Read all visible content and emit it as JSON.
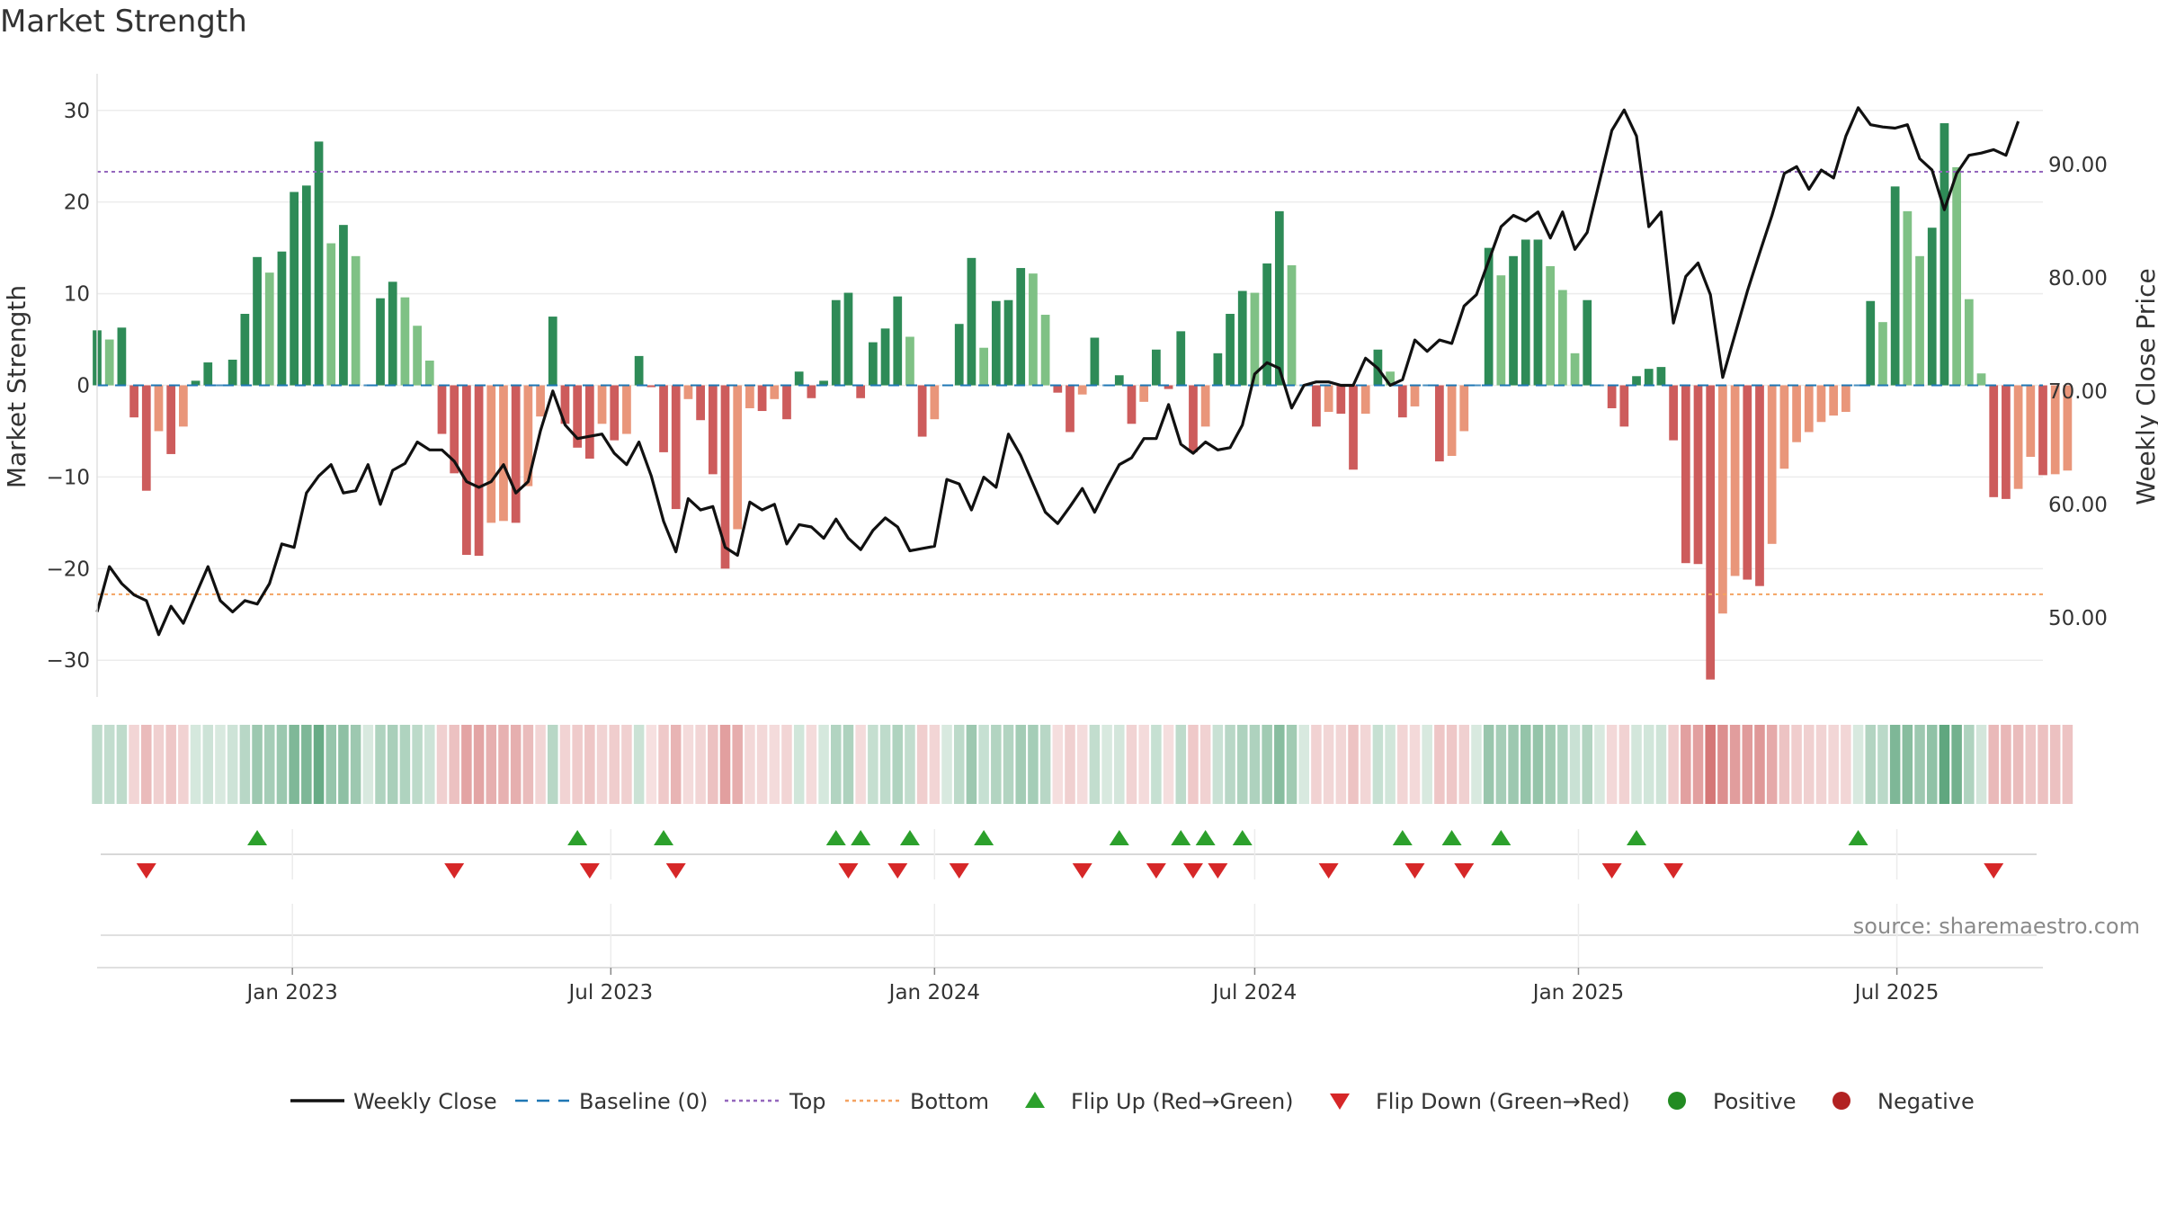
{
  "title": "Market Strength",
  "source": "source: sharemaestro.com",
  "chart_data": {
    "type": "bar",
    "title": "Market Strength",
    "ylabel_left": "Market Strength",
    "ylabel_right": "Weekly Close Price",
    "y_left_ticks": [
      30,
      20,
      10,
      0,
      -10,
      -20,
      -30
    ],
    "y_left_tick_labels": [
      "30",
      "20",
      "10",
      "0",
      "−10",
      "−20",
      "−30"
    ],
    "y_right_ticks": [
      90,
      80,
      70,
      60,
      50
    ],
    "y_right_tick_labels": [
      "90.00",
      "80.00",
      "70.00",
      "60.00",
      "50.00"
    ],
    "ylim_left": [
      -34,
      34
    ],
    "ylim_right": [
      43,
      98
    ],
    "x_start": "2022-09-12",
    "x_end": "2025-09-22",
    "x_ticks": [
      {
        "date": "2023-01-01",
        "label": "Jan 2023"
      },
      {
        "date": "2023-07-01",
        "label": "Jul 2023"
      },
      {
        "date": "2024-01-01",
        "label": "Jan 2024"
      },
      {
        "date": "2024-07-01",
        "label": "Jul 2024"
      },
      {
        "date": "2025-01-01",
        "label": "Jan 2025"
      },
      {
        "date": "2025-07-01",
        "label": "Jul 2025"
      }
    ],
    "top_line": 23.3,
    "bottom_line": -22.8,
    "colors": {
      "positive_strong": "#2e8b57",
      "positive_weak": "#7fc185",
      "negative_strong": "#cd5c5c",
      "negative_weak": "#e9967a",
      "weekly_close": "#111111",
      "baseline": "#1f77b4",
      "top": "#9467bd",
      "bottom": "#f4a261",
      "flip_up": "#2ca02c",
      "flip_down": "#d62728",
      "positive_dot": "#228b22",
      "negative_dot": "#b22222"
    },
    "strength": [
      6,
      5,
      6.3,
      -3.5,
      -11.5,
      -5,
      -7.5,
      -4.5,
      0.5,
      2.5,
      0,
      2.8,
      7.8,
      14,
      12.3,
      14.6,
      21.1,
      21.8,
      26.6,
      15.5,
      17.5,
      14.1,
      0,
      9.5,
      11.3,
      9.6,
      6.5,
      2.7,
      -5.3,
      -9.6,
      -18.5,
      -18.6,
      -15,
      -14.8,
      -15,
      -11,
      -3.4,
      7.5,
      -4.2,
      -6.8,
      -8,
      -4.2,
      -6,
      -5.3,
      3.2,
      -0.2,
      -7.3,
      -13.5,
      -1.5,
      -3.8,
      -9.7,
      -20,
      -15.7,
      -2.5,
      -2.8,
      -1.5,
      -3.7,
      1.5,
      -1.4,
      0.5,
      9.3,
      10.1,
      -1.4,
      4.7,
      6.2,
      9.7,
      5.3,
      -5.6,
      -3.7,
      0,
      6.7,
      13.9,
      4.1,
      9.2,
      9.3,
      12.8,
      12.2,
      7.7,
      -0.8,
      -5.1,
      -1,
      5.2,
      0,
      1.1,
      -4.2,
      -1.8,
      3.9,
      -0.4,
      5.9,
      -7.3,
      -4.5,
      3.5,
      7.8,
      10.3,
      10.1,
      13.3,
      19,
      13.1,
      0,
      -4.5,
      -2.9,
      -3.1,
      -9.2,
      -3.1,
      3.9,
      1.5,
      -3.5,
      -2.3,
      0,
      -8.3,
      -7.7,
      -5,
      0,
      15,
      12,
      14.1,
      15.9,
      15.9,
      13,
      10.4,
      3.5,
      9.3,
      0,
      -2.5,
      -4.5,
      1,
      1.8,
      2,
      -6,
      -19.4,
      -19.5,
      -32.1,
      -24.9,
      -20.8,
      -21.2,
      -21.9,
      -17.3,
      -9.1,
      -6.2,
      -5.1,
      -4,
      -3.3,
      -2.9,
      0,
      9.2,
      6.9,
      21.7,
      19,
      14.1,
      17.2,
      28.6,
      23.8,
      9.4,
      1.3,
      -12.2,
      -12.4,
      -11.3,
      -7.8,
      -9.8,
      -9.7,
      -9.3
    ],
    "weekly_close": [
      50.5,
      54.5,
      53,
      52,
      51.5,
      48.5,
      51,
      49.5,
      52,
      54.5,
      51.5,
      50.5,
      51.5,
      51.2,
      53,
      56.5,
      56.2,
      61,
      62.5,
      63.5,
      61,
      61.2,
      63.5,
      60,
      63,
      63.6,
      65.5,
      64.8,
      64.8,
      63.8,
      62,
      61.5,
      62,
      63.5,
      61,
      62,
      66.5,
      70,
      67,
      65.8,
      66,
      66.2,
      64.5,
      63.5,
      65.5,
      62.5,
      58.5,
      55.8,
      60.5,
      59.5,
      59.8,
      56.2,
      55.5,
      60.2,
      59.5,
      60,
      56.5,
      58.2,
      58,
      57,
      58.7,
      57,
      56,
      57.7,
      58.8,
      58,
      55.9,
      56.1,
      56.3,
      62.2,
      61.8,
      59.5,
      62.4,
      61.5,
      66.2,
      64.3,
      61.8,
      59.3,
      58.3,
      59.8,
      61.4,
      59.3,
      61.5,
      63.5,
      64.1,
      65.8,
      65.8,
      68.8,
      65.3,
      64.5,
      65.5,
      64.8,
      65,
      67,
      71.5,
      72.5,
      72,
      68.5,
      70.5,
      70.8,
      70.8,
      70.5,
      70.5,
      72.9,
      72,
      70.5,
      71,
      74.5,
      73.5,
      74.5,
      74.2,
      77.5,
      78.5,
      81.5,
      84.5,
      85.5,
      85,
      85.8,
      83.5,
      85.8,
      82.5,
      84,
      88.5,
      93,
      94.8,
      92.5,
      84.5,
      85.8,
      76,
      80.1,
      81.3,
      78.5,
      71.2,
      75,
      78.8,
      82.2,
      85.5,
      89.2,
      89.8,
      87.8,
      89.5,
      88.8,
      92.5,
      95,
      93.5,
      93.3,
      93.2,
      93.5,
      90.5,
      89.5,
      86,
      89.2,
      90.8,
      91,
      91.3,
      90.8,
      93.8
    ],
    "flip_up": [
      "2022-12-12",
      "2023-06-12",
      "2023-07-31",
      "2023-11-06",
      "2023-11-20",
      "2023-12-18",
      "2024-01-29",
      "2024-04-15",
      "2024-05-20",
      "2024-06-03",
      "2024-06-24",
      "2024-09-23",
      "2024-10-21",
      "2024-11-18",
      "2025-02-03",
      "2025-06-09"
    ],
    "flip_down": [
      "2022-10-10",
      "2023-04-03",
      "2023-06-19",
      "2023-08-07",
      "2023-11-13",
      "2023-12-11",
      "2024-01-15",
      "2024-03-25",
      "2024-05-06",
      "2024-05-27",
      "2024-06-10",
      "2024-08-12",
      "2024-09-30",
      "2024-10-28",
      "2025-01-20",
      "2025-02-24",
      "2025-08-25"
    ],
    "legend": [
      {
        "label": "Weekly Close",
        "marker": "line"
      },
      {
        "label": "Baseline (0)",
        "marker": "dash"
      },
      {
        "label": "Top",
        "marker": "dot-purple"
      },
      {
        "label": "Bottom",
        "marker": "dot-orange"
      },
      {
        "label": "Flip Up (Red→Green)",
        "marker": "triangle-up"
      },
      {
        "label": "Flip Down (Green→Red)",
        "marker": "triangle-down"
      },
      {
        "label": "Positive",
        "marker": "circle-green"
      },
      {
        "label": "Negative",
        "marker": "circle-red"
      }
    ],
    "grid": true,
    "legend_position": "bottom"
  }
}
